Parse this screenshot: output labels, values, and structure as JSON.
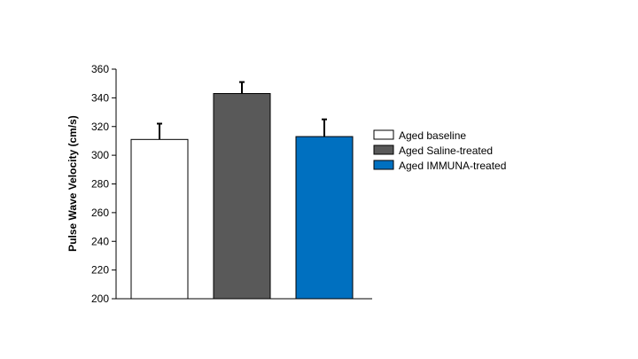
{
  "chart_data": {
    "type": "bar",
    "title": "",
    "xlabel": "",
    "ylabel": "Pulse Wave Velocity (cm/s)",
    "ylim": [
      200,
      360
    ],
    "yticks": [
      200,
      220,
      240,
      260,
      280,
      300,
      320,
      340,
      360
    ],
    "grid": false,
    "legend_position": "right",
    "series": [
      {
        "name": "Aged baseline",
        "value": 311,
        "error": 11,
        "color": "#ffffff"
      },
      {
        "name": "Aged Saline-treated",
        "value": 343,
        "error": 8,
        "color": "#595959"
      },
      {
        "name": "Aged IMMUNA-treated",
        "value": 313,
        "error": 12,
        "color": "#0070c0"
      }
    ]
  }
}
